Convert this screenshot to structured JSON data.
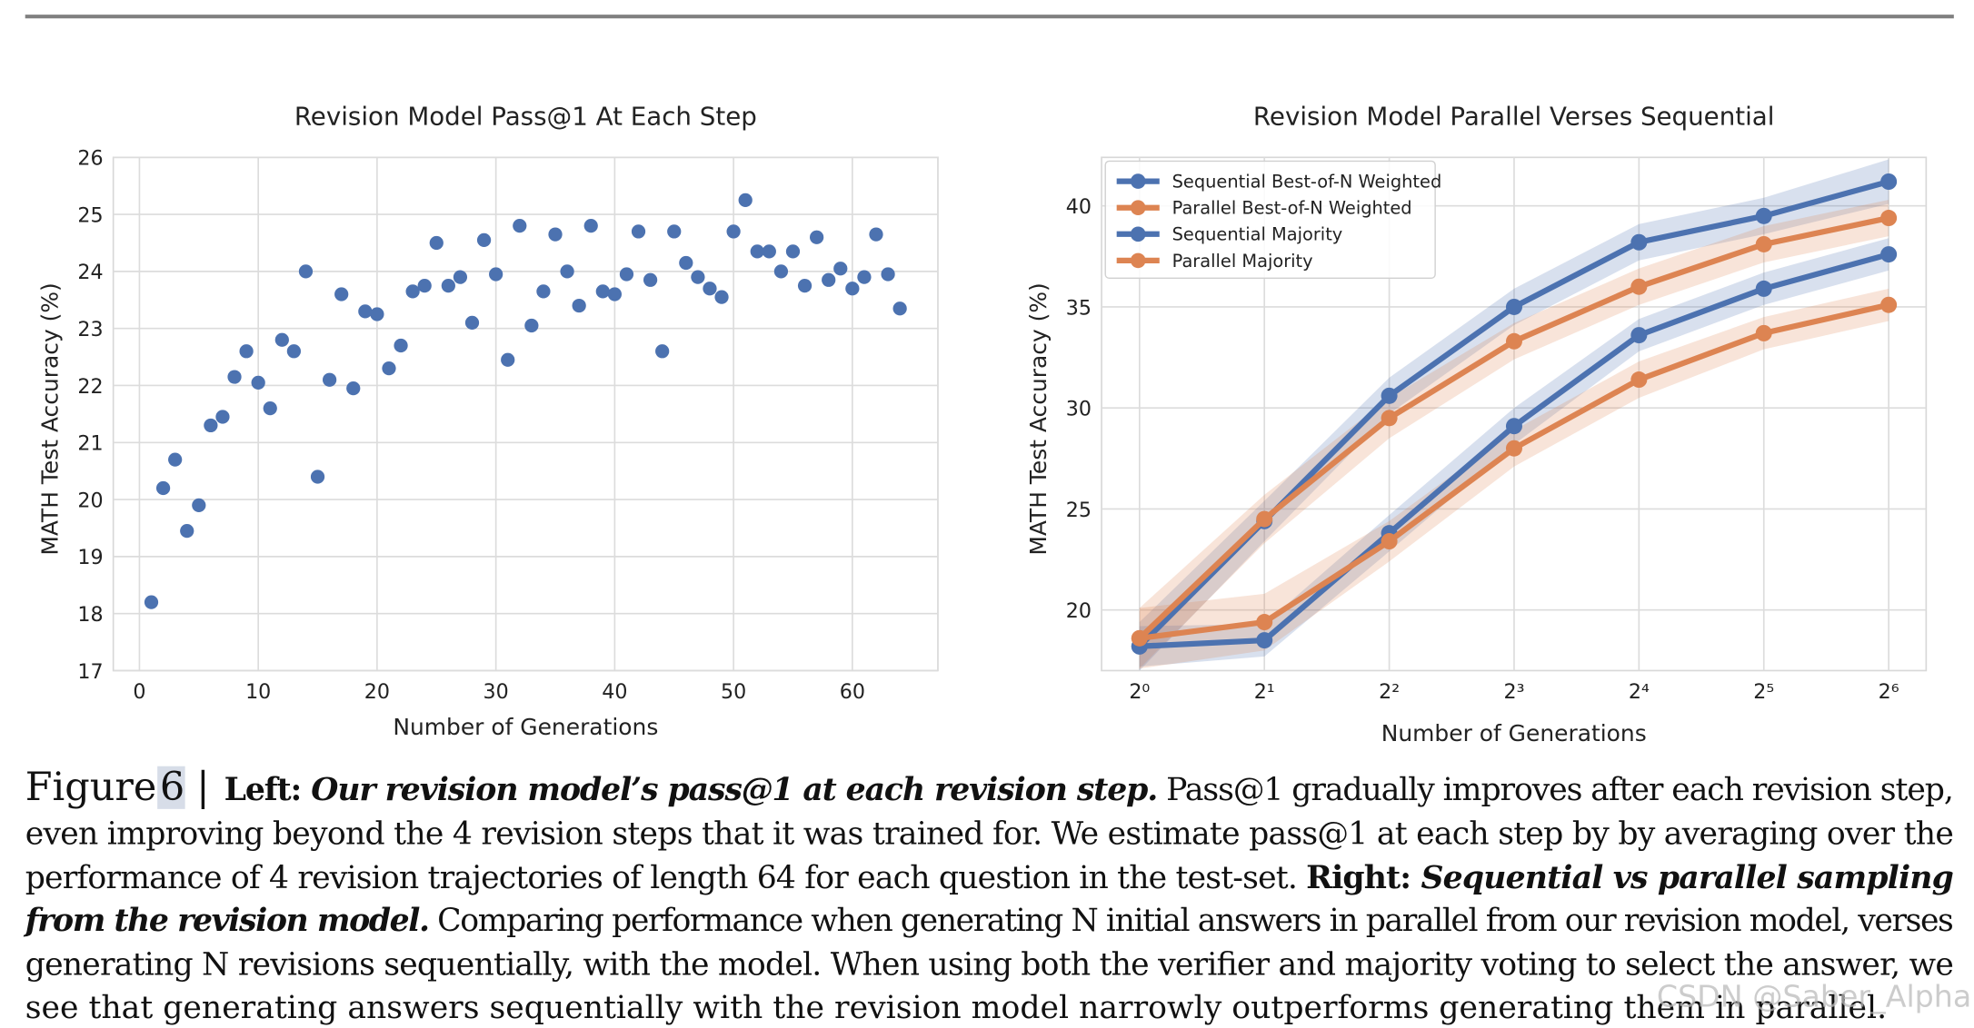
{
  "chart_data": [
    {
      "type": "scatter",
      "title": "Revision Model Pass@1 At Each Step",
      "x_label": "Number of Generations",
      "y_label": "MATH Test Accuracy (%)",
      "color": "#4c72b0",
      "grid": true,
      "x": [
        1,
        2,
        3,
        4,
        5,
        6,
        7,
        8,
        9,
        10,
        11,
        12,
        13,
        14,
        15,
        16,
        17,
        18,
        19,
        20,
        21,
        22,
        23,
        24,
        25,
        26,
        27,
        28,
        29,
        30,
        31,
        32,
        33,
        34,
        35,
        36,
        37,
        38,
        39,
        40,
        41,
        42,
        43,
        44,
        45,
        46,
        47,
        48,
        49,
        50,
        51,
        52,
        53,
        54,
        55,
        56,
        57,
        58,
        59,
        60,
        61,
        62,
        63,
        64
      ],
      "values": [
        18.2,
        20.2,
        20.7,
        19.45,
        19.9,
        21.3,
        21.45,
        22.15,
        22.6,
        22.05,
        21.6,
        22.8,
        22.6,
        24.0,
        20.4,
        22.1,
        23.6,
        21.95,
        23.3,
        23.25,
        22.3,
        22.7,
        23.65,
        23.75,
        24.5,
        23.75,
        23.9,
        23.1,
        24.55,
        23.95,
        22.45,
        24.8,
        23.05,
        23.65,
        24.65,
        24.0,
        23.4,
        24.8,
        23.65,
        23.6,
        23.95,
        24.7,
        23.85,
        22.6,
        24.7,
        24.15,
        23.9,
        23.7,
        23.55,
        24.7,
        25.25,
        24.35,
        24.35,
        24.0,
        24.35,
        23.75,
        24.6,
        23.85,
        24.05,
        23.7,
        23.9,
        24.65,
        23.95,
        23.35
      ],
      "xlim": [
        -2.2,
        67.2
      ],
      "xticks": [
        0,
        10,
        20,
        30,
        40,
        50,
        60
      ],
      "ylim": [
        17,
        26
      ],
      "yticks": [
        17,
        18,
        19,
        20,
        21,
        22,
        23,
        24,
        25,
        26
      ]
    },
    {
      "type": "line",
      "title": "Revision Model Parallel Verses Sequential",
      "x_label": "Number of Generations",
      "y_label": "MATH Test Accuracy (%)",
      "xscale": "log2",
      "grid": true,
      "legend": "upper-left",
      "x": [
        1,
        2,
        4,
        8,
        16,
        32,
        64
      ],
      "xlim": [
        0.81,
        78.8
      ],
      "xticks": [
        {
          "value": 1,
          "label": "2⁰"
        },
        {
          "value": 2,
          "label": "2¹"
        },
        {
          "value": 4,
          "label": "2²"
        },
        {
          "value": 8,
          "label": "2³"
        },
        {
          "value": 16,
          "label": "2⁴"
        },
        {
          "value": 32,
          "label": "2⁵"
        },
        {
          "value": 64,
          "label": "2⁶"
        }
      ],
      "ylim": [
        17,
        42.4
      ],
      "yticks": [
        20,
        25,
        30,
        35,
        40
      ],
      "series": [
        {
          "name": "Sequential Best-of-N Weighted",
          "color": "#4c72b0",
          "values": [
            18.2,
            24.4,
            30.6,
            35.0,
            38.2,
            39.5,
            41.2
          ],
          "errors": [
            1.2,
            1.0,
            0.9,
            0.9,
            0.9,
            0.9,
            1.1
          ]
        },
        {
          "name": "Parallel Best-of-N Weighted",
          "color": "#dd8452",
          "values": [
            18.6,
            24.5,
            29.5,
            33.3,
            36.0,
            38.1,
            39.4
          ],
          "errors": [
            1.5,
            1.2,
            1.0,
            0.9,
            0.9,
            0.9,
            0.9
          ]
        },
        {
          "name": "Sequential Majority",
          "color": "#4c72b0",
          "values": [
            18.2,
            18.5,
            23.8,
            29.1,
            33.6,
            35.9,
            37.6
          ],
          "errors": [
            1.0,
            0.8,
            0.9,
            0.9,
            0.8,
            0.8,
            0.8
          ]
        },
        {
          "name": "Parallel Majority",
          "color": "#dd8452",
          "values": [
            18.6,
            19.4,
            23.4,
            28.0,
            31.4,
            33.7,
            35.1
          ],
          "errors": [
            1.5,
            1.4,
            1.0,
            0.9,
            0.9,
            0.8,
            0.8
          ]
        }
      ]
    }
  ],
  "caption": {
    "figure_label": "Figure",
    "figure_number": "6",
    "separator": "|",
    "lines": [
      [
        {
          "text": "Left: ",
          "style": "bold"
        },
        {
          "text": "Our revision model’s pass@1 at each revision step.",
          "style": "bolditalic"
        },
        {
          "text": " Pass@1 gradually improves after each revision step,",
          "style": "normal"
        }
      ],
      [
        {
          "text": "even improving beyond the 4 revision steps that it was trained for. We estimate pass@1 at each step by by averaging over the",
          "style": "normal"
        }
      ],
      [
        {
          "text": "performance of 4 revision trajectories of length 64 for each question in the test-set. ",
          "style": "normal"
        },
        {
          "text": "Right: ",
          "style": "bold"
        },
        {
          "text": "Sequential vs parallel sampling",
          "style": "bolditalic"
        }
      ],
      [
        {
          "text": "from the revision model.",
          "style": "bolditalic"
        },
        {
          "text": " Comparing performance when generating N initial answers in parallel from our revision model, verses",
          "style": "normal"
        }
      ],
      [
        {
          "text": "generating N revisions sequentially, with the model. When using both the verifier and majority voting to select the answer, we",
          "style": "normal"
        }
      ],
      [
        {
          "text": "see that generating answers sequentially with the revision model narrowly outperforms generating them in parallel.",
          "style": "normal"
        }
      ]
    ]
  },
  "watermark": "CSDN @Saber_Alpha"
}
